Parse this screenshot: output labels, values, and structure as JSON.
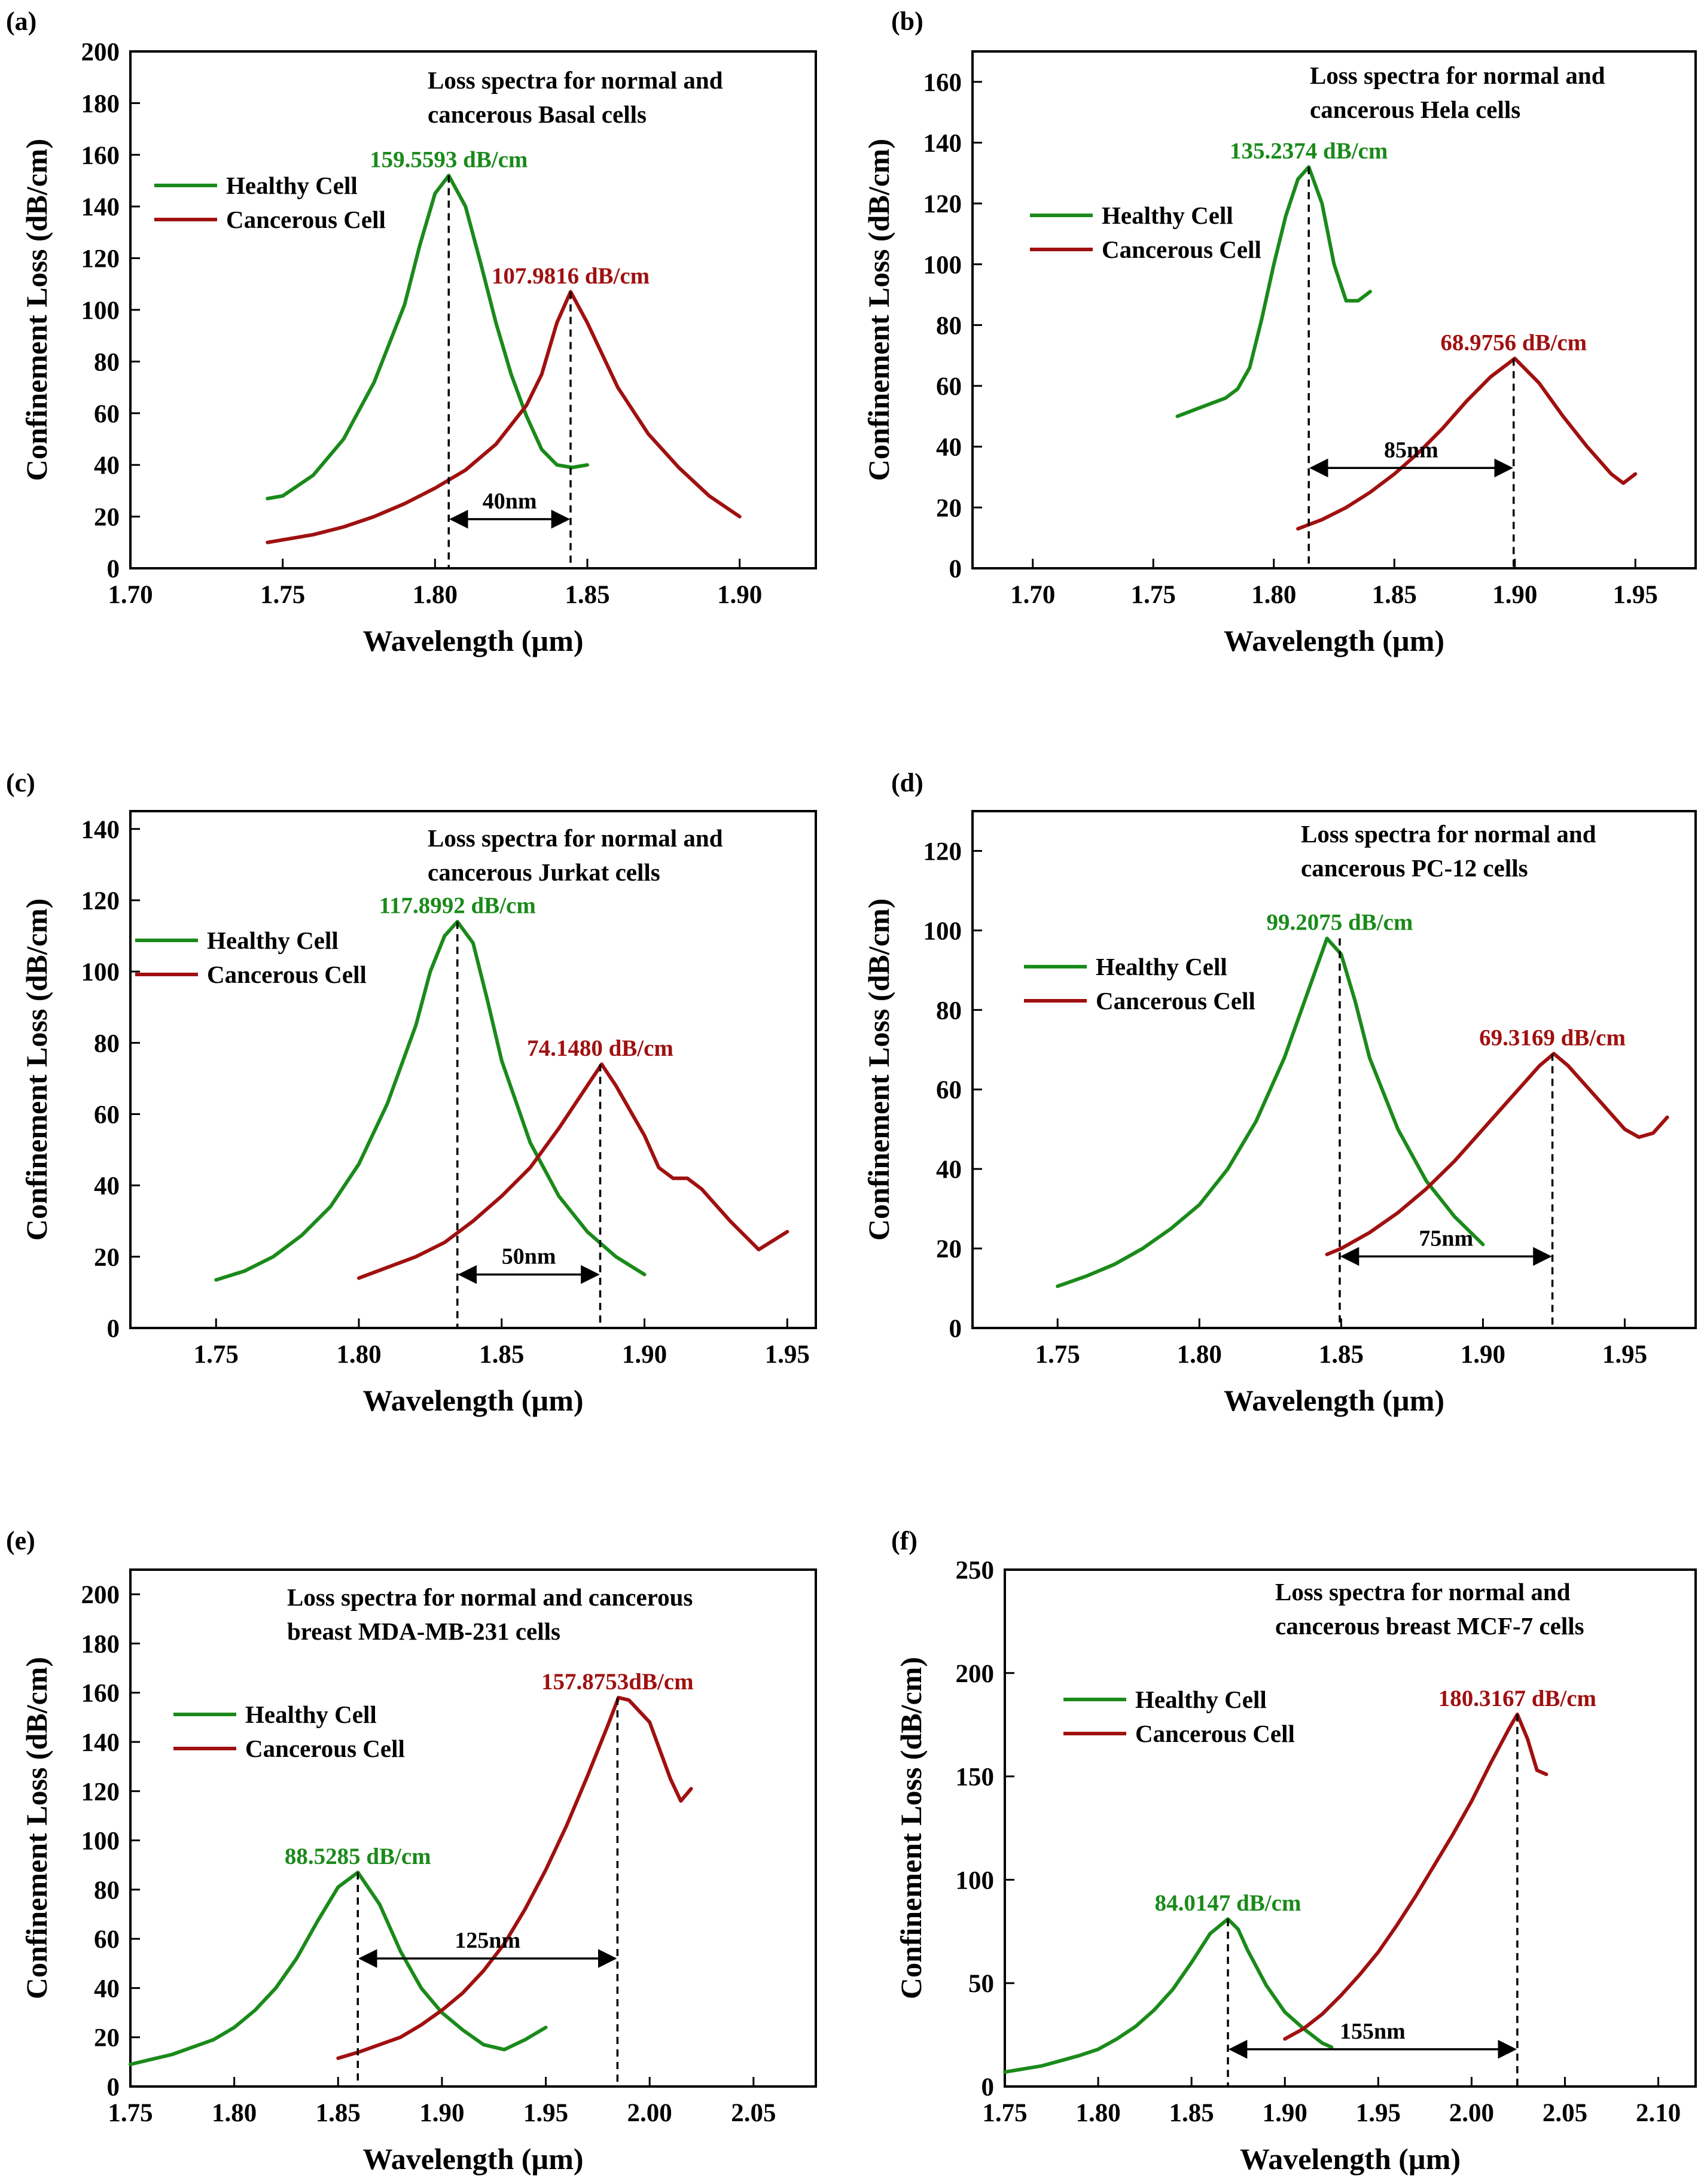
{
  "figure": {
    "colors": {
      "healthy": "#1a8a1a",
      "cancerous": "#a01010",
      "axis": "#000000"
    },
    "panels": [
      {
        "label": "(a)",
        "chart_data": {
          "type": "line",
          "title_lines": [
            "Loss spectra for normal and",
            "cancerous Basal cells"
          ],
          "xlabel": "Wavelength (µm)",
          "ylabel": "Confinement Loss (dB/cm)",
          "xlim": [
            1.7,
            1.925
          ],
          "ylim": [
            0,
            200
          ],
          "xticks": [
            1.7,
            1.75,
            1.8,
            1.85,
            1.9
          ],
          "xtick_labels": [
            "1.70",
            "1.75",
            "1.80",
            "1.85",
            "1.90"
          ],
          "yticks": [
            0,
            20,
            40,
            60,
            80,
            100,
            120,
            140,
            160,
            180,
            200
          ],
          "series": [
            {
              "name": "Healthy Cell",
              "color": "#1a8a1a",
              "x": [
                1.745,
                1.75,
                1.76,
                1.77,
                1.78,
                1.79,
                1.795,
                1.8,
                1.8045,
                1.81,
                1.815,
                1.82,
                1.825,
                1.83,
                1.835,
                1.84,
                1.845,
                1.85
              ],
              "y": [
                27,
                28,
                36,
                50,
                72,
                102,
                125,
                145,
                152,
                140,
                118,
                95,
                75,
                59,
                46,
                40,
                39,
                40
              ]
            },
            {
              "name": "Cancerous Cell",
              "color": "#a01010",
              "x": [
                1.745,
                1.76,
                1.77,
                1.78,
                1.79,
                1.8,
                1.81,
                1.82,
                1.83,
                1.835,
                1.84,
                1.8445,
                1.85,
                1.86,
                1.87,
                1.88,
                1.89,
                1.9
              ],
              "y": [
                10,
                13,
                16,
                20,
                25,
                31,
                38,
                48,
                63,
                75,
                95,
                107,
                95,
                70,
                52,
                39,
                28,
                20
              ]
            }
          ],
          "peaks": [
            {
              "text": "159.5593 dB/cm",
              "color": "#1a8a1a",
              "x": 1.8045,
              "y": 152
            },
            {
              "text": "107.9816 dB/cm",
              "color": "#a01010",
              "x": 1.8445,
              "y": 107
            }
          ],
          "shift": {
            "text": "40nm",
            "x1": 1.8045,
            "x2": 1.8445,
            "y": 19
          }
        }
      },
      {
        "label": "(b)",
        "chart_data": {
          "type": "line",
          "title_lines": [
            "Loss spectra for normal and",
            "cancerous Hela cells"
          ],
          "xlabel": "Wavelength (µm)",
          "ylabel": "Confinement Loss (dB/cm)",
          "xlim": [
            1.675,
            1.975
          ],
          "ylim": [
            0,
            170
          ],
          "xticks": [
            1.7,
            1.75,
            1.8,
            1.85,
            1.9,
            1.95
          ],
          "xtick_labels": [
            "1.70",
            "1.75",
            "1.80",
            "1.85",
            "1.90",
            "1.95"
          ],
          "yticks": [
            0,
            20,
            40,
            60,
            80,
            100,
            120,
            140,
            160
          ],
          "series": [
            {
              "name": "Healthy Cell",
              "color": "#1a8a1a",
              "x": [
                1.76,
                1.77,
                1.78,
                1.785,
                1.79,
                1.795,
                1.8,
                1.805,
                1.81,
                1.8145,
                1.82,
                1.825,
                1.83,
                1.835,
                1.84
              ],
              "y": [
                50,
                53,
                56,
                59,
                66,
                82,
                100,
                116,
                128,
                132,
                120,
                100,
                88,
                88,
                91
              ]
            },
            {
              "name": "Cancerous Cell",
              "color": "#a01010",
              "x": [
                1.81,
                1.82,
                1.83,
                1.84,
                1.85,
                1.86,
                1.87,
                1.88,
                1.89,
                1.9,
                1.91,
                1.92,
                1.93,
                1.94,
                1.945,
                1.95
              ],
              "y": [
                13,
                16,
                20,
                25,
                31,
                38,
                46,
                55,
                63,
                69,
                61,
                50,
                40,
                31,
                28,
                31
              ]
            }
          ],
          "peaks": [
            {
              "text": "135.2374 dB/cm",
              "color": "#1a8a1a",
              "x": 1.8145,
              "y": 132
            },
            {
              "text": "68.9756 dB/cm",
              "color": "#a01010",
              "x": 1.8995,
              "y": 69
            }
          ],
          "shift": {
            "text": "85nm",
            "x1": 1.8145,
            "x2": 1.8995,
            "y": 33
          }
        }
      },
      {
        "label": "(c)",
        "chart_data": {
          "type": "line",
          "title_lines": [
            "Loss spectra for normal and",
            "cancerous Jurkat cells"
          ],
          "xlabel": "Wavelength (µm)",
          "ylabel": "Confinement Loss (dB/cm)",
          "xlim": [
            1.72,
            1.96
          ],
          "ylim": [
            0,
            145
          ],
          "xticks": [
            1.75,
            1.8,
            1.85,
            1.9,
            1.95
          ],
          "xtick_labels": [
            "1.75",
            "1.80",
            "1.85",
            "1.90",
            "1.95"
          ],
          "yticks": [
            0,
            20,
            40,
            60,
            80,
            100,
            120,
            140
          ],
          "series": [
            {
              "name": "Healthy Cell",
              "color": "#1a8a1a",
              "x": [
                1.75,
                1.76,
                1.77,
                1.78,
                1.79,
                1.8,
                1.81,
                1.82,
                1.825,
                1.83,
                1.8345,
                1.84,
                1.845,
                1.85,
                1.86,
                1.87,
                1.88,
                1.89,
                1.9
              ],
              "y": [
                13.5,
                16,
                20,
                26,
                34,
                46,
                63,
                85,
                100,
                110,
                114,
                108,
                92,
                75,
                52,
                37,
                27,
                20,
                15
              ]
            },
            {
              "name": "Cancerous Cell",
              "color": "#a01010",
              "x": [
                1.8,
                1.81,
                1.82,
                1.83,
                1.84,
                1.85,
                1.86,
                1.87,
                1.88,
                1.885,
                1.89,
                1.9,
                1.905,
                1.91,
                1.915,
                1.92,
                1.93,
                1.94,
                1.95
              ],
              "y": [
                14,
                17,
                20,
                24,
                30,
                37,
                45,
                56,
                68,
                74,
                68,
                54,
                45,
                42,
                42,
                39,
                30,
                22,
                27
              ]
            }
          ],
          "peaks": [
            {
              "text": "117.8992 dB/cm",
              "color": "#1a8a1a",
              "x": 1.8345,
              "y": 114
            },
            {
              "text": "74.1480 dB/cm",
              "color": "#a01010",
              "x": 1.8845,
              "y": 74
            }
          ],
          "shift": {
            "text": "50nm",
            "x1": 1.8345,
            "x2": 1.8845,
            "y": 15
          }
        }
      },
      {
        "label": "(d)",
        "chart_data": {
          "type": "line",
          "title_lines": [
            "Loss spectra for normal and",
            "cancerous PC-12 cells"
          ],
          "xlabel": "Wavelength (µm)",
          "ylabel": "Confinement Loss (dB/cm)",
          "xlim": [
            1.72,
            1.975
          ],
          "ylim": [
            0,
            130
          ],
          "xticks": [
            1.75,
            1.8,
            1.85,
            1.9,
            1.95
          ],
          "xtick_labels": [
            "1.75",
            "1.80",
            "1.85",
            "1.90",
            "1.95"
          ],
          "yticks": [
            0,
            20,
            40,
            60,
            80,
            100,
            120
          ],
          "series": [
            {
              "name": "Healthy Cell",
              "color": "#1a8a1a",
              "x": [
                1.75,
                1.76,
                1.77,
                1.78,
                1.79,
                1.8,
                1.81,
                1.82,
                1.83,
                1.84,
                1.845,
                1.85,
                1.855,
                1.86,
                1.87,
                1.88,
                1.89,
                1.9
              ],
              "y": [
                10.5,
                13,
                16,
                20,
                25,
                31,
                40,
                52,
                68,
                88,
                98,
                94,
                82,
                68,
                50,
                37,
                28,
                21
              ]
            },
            {
              "name": "Cancerous Cell",
              "color": "#a01010",
              "x": [
                1.845,
                1.85,
                1.86,
                1.87,
                1.88,
                1.89,
                1.9,
                1.91,
                1.92,
                1.925,
                1.93,
                1.94,
                1.95,
                1.955,
                1.96,
                1.965
              ],
              "y": [
                18.5,
                20,
                24,
                29,
                35,
                42,
                50,
                58,
                66,
                69,
                66,
                58,
                50,
                48,
                49,
                53
              ]
            }
          ],
          "peaks": [
            {
              "text": "99.2075 dB/cm",
              "color": "#1a8a1a",
              "x": 1.8495,
              "y": 98
            },
            {
              "text": "69.3169 dB/cm",
              "color": "#a01010",
              "x": 1.9245,
              "y": 69
            }
          ],
          "shift": {
            "text": "75nm",
            "x1": 1.8495,
            "x2": 1.9245,
            "y": 18
          }
        }
      },
      {
        "label": "(e)",
        "chart_data": {
          "type": "line",
          "title_lines": [
            "Loss spectra for normal and cancerous",
            "breast MDA-MB-231 cells"
          ],
          "xlabel": "Wavelength (µm)",
          "ylabel": "Confinement Loss (dB/cm)",
          "xlim": [
            1.75,
            2.08
          ],
          "ylim": [
            0,
            210
          ],
          "xticks": [
            1.75,
            1.8,
            1.85,
            1.9,
            1.95,
            2.0,
            2.05
          ],
          "xtick_labels": [
            "1.75",
            "1.80",
            "1.85",
            "1.90",
            "1.95",
            "2.00",
            "2.05"
          ],
          "yticks": [
            0,
            20,
            40,
            60,
            80,
            100,
            120,
            140,
            160,
            180,
            200
          ],
          "series": [
            {
              "name": "Healthy Cell",
              "color": "#1a8a1a",
              "x": [
                1.75,
                1.77,
                1.79,
                1.8,
                1.81,
                1.82,
                1.83,
                1.84,
                1.85,
                1.8595,
                1.87,
                1.88,
                1.89,
                1.9,
                1.91,
                1.92,
                1.93,
                1.94,
                1.95
              ],
              "y": [
                9,
                13,
                19,
                24,
                31,
                40,
                52,
                67,
                81,
                87,
                74,
                55,
                40,
                30,
                23,
                17,
                15,
                19,
                24
              ]
            },
            {
              "name": "Cancerous Cell",
              "color": "#a01010",
              "x": [
                1.85,
                1.86,
                1.87,
                1.88,
                1.89,
                1.9,
                1.91,
                1.92,
                1.93,
                1.94,
                1.95,
                1.96,
                1.97,
                1.98,
                1.985,
                1.99,
                2.0,
                2.01,
                2.015,
                2.02
              ],
              "y": [
                11.5,
                14,
                17,
                20,
                25,
                31,
                38,
                47,
                58,
                72,
                88,
                106,
                126,
                147,
                158,
                157,
                148,
                125,
                116,
                121
              ]
            }
          ],
          "peaks": [
            {
              "text": "88.5285 dB/cm",
              "color": "#1a8a1a",
              "x": 1.8595,
              "y": 87
            },
            {
              "text": "157.8753dB/cm",
              "color": "#a01010",
              "x": 1.9845,
              "y": 158
            }
          ],
          "shift": {
            "text": "125nm",
            "x1": 1.8595,
            "x2": 1.9845,
            "y": 52
          }
        }
      },
      {
        "label": "(f)",
        "chart_data": {
          "type": "line",
          "title_lines": [
            "Loss spectra for normal and",
            "cancerous breast MCF-7 cells"
          ],
          "xlabel": "Wavelength (µm)",
          "ylabel": "Confinement Loss (dB/cm)",
          "xlim": [
            1.75,
            2.12
          ],
          "ylim": [
            0,
            250
          ],
          "xticks": [
            1.75,
            1.8,
            1.85,
            1.9,
            1.95,
            2.0,
            2.05,
            2.1
          ],
          "xtick_labels": [
            "1.75",
            "1.80",
            "1.85",
            "1.90",
            "1.95",
            "2.00",
            "2.05",
            "2.10"
          ],
          "yticks": [
            0,
            50,
            100,
            150,
            200,
            250
          ],
          "series": [
            {
              "name": "Healthy Cell",
              "color": "#1a8a1a",
              "x": [
                1.75,
                1.77,
                1.79,
                1.8,
                1.81,
                1.82,
                1.83,
                1.84,
                1.85,
                1.86,
                1.8695,
                1.875,
                1.88,
                1.89,
                1.9,
                1.91,
                1.92,
                1.925
              ],
              "y": [
                7,
                10,
                15,
                18,
                23,
                29,
                37,
                47,
                60,
                74,
                81,
                76,
                66,
                49,
                36,
                28,
                21,
                19
              ]
            },
            {
              "name": "Cancerous Cell",
              "color": "#a01010",
              "x": [
                1.9,
                1.91,
                1.92,
                1.93,
                1.94,
                1.95,
                1.96,
                1.97,
                1.98,
                1.99,
                2.0,
                2.01,
                2.02,
                2.0245,
                2.03,
                2.035,
                2.04
              ],
              "y": [
                23,
                28,
                35,
                44,
                54,
                65,
                78,
                92,
                107,
                122,
                138,
                156,
                173,
                180,
                168,
                153,
                151
              ]
            }
          ],
          "peaks": [
            {
              "text": "84.0147 dB/cm",
              "color": "#1a8a1a",
              "x": 1.8695,
              "y": 81
            },
            {
              "text": "180.3167 dB/cm",
              "color": "#a01010",
              "x": 2.0245,
              "y": 180
            }
          ],
          "shift": {
            "text": "155nm",
            "x1": 1.8695,
            "x2": 2.0245,
            "y": 18
          }
        }
      }
    ]
  }
}
